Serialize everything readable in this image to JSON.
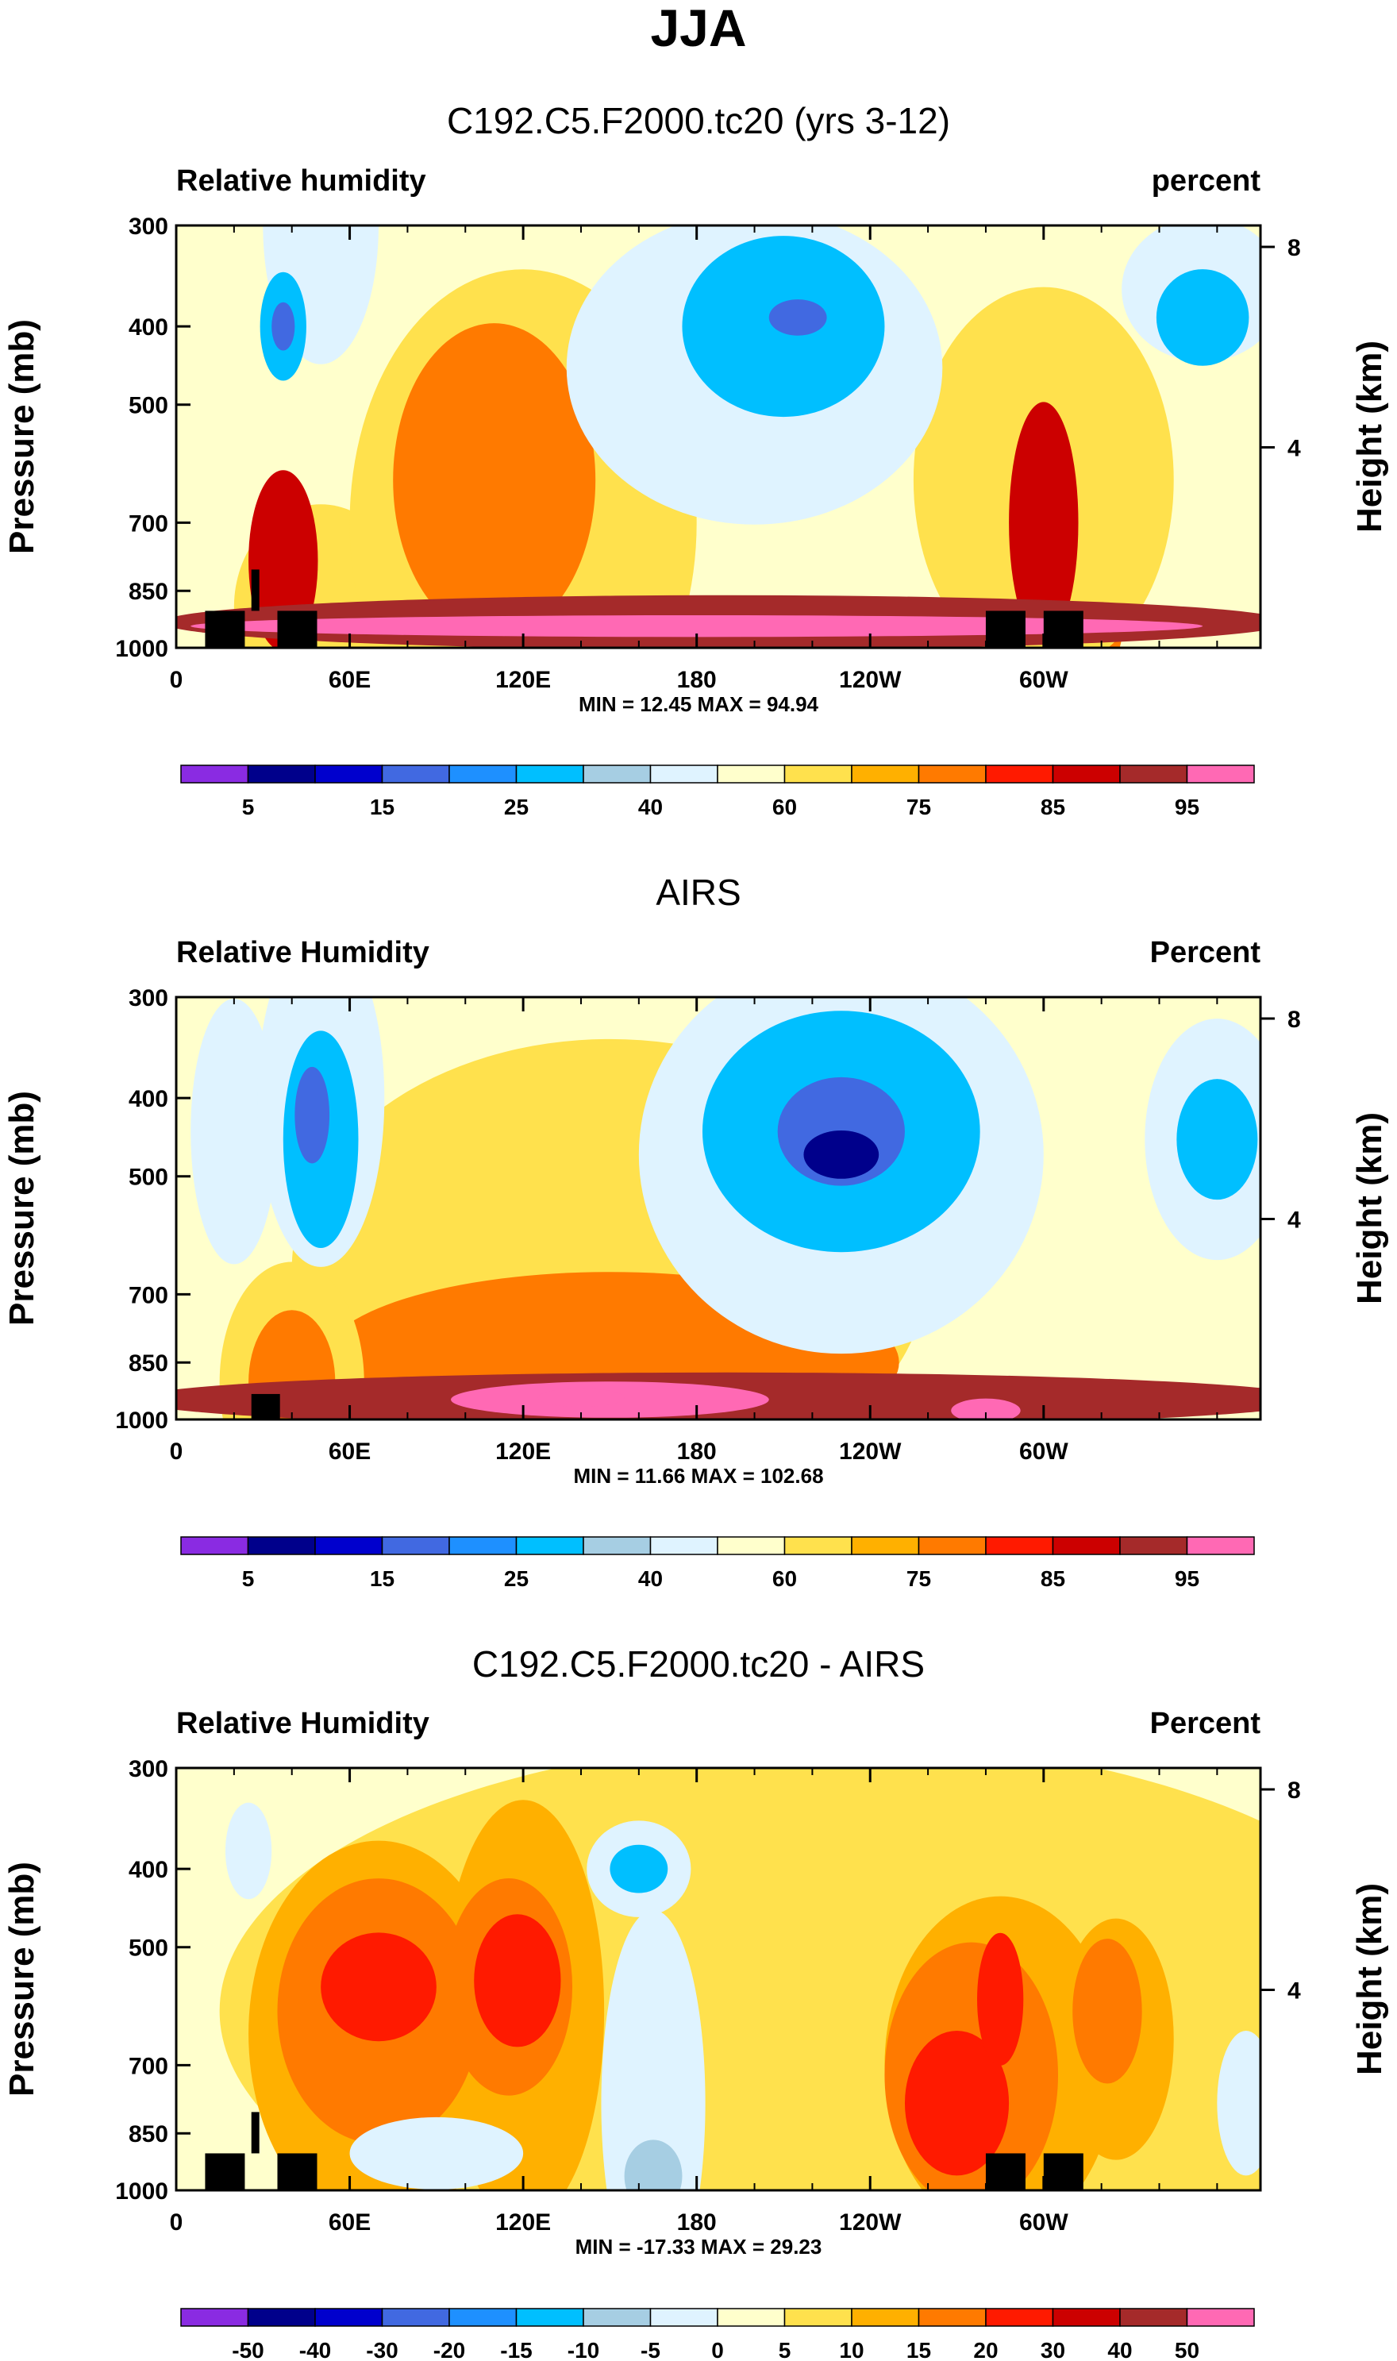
{
  "season": "JJA",
  "chart_data": [
    {
      "type": "heatmap",
      "title": "C192.C5.F2000.tc20 (yrs 3-12)",
      "left_label": "Relative humidity",
      "right_label": "percent",
      "xlabel": "",
      "ylabel": "Pressure (mb)",
      "ylabel_right": "Height (km)",
      "x_ticks": [
        "0",
        "60E",
        "120E",
        "180",
        "120W",
        "60W"
      ],
      "y_ticks": [
        "300",
        "400",
        "500",
        "700",
        "850",
        "1000"
      ],
      "y_ticks_right": [
        "8",
        "4"
      ],
      "xlim": [
        0,
        375
      ],
      "ylim": [
        1000,
        300
      ],
      "stats": "MIN =  12.45  MAX =  94.94",
      "colorbar_labels": [
        "5",
        "15",
        "25",
        "40",
        "60",
        "75",
        "85",
        "95"
      ],
      "layers": [
        {
          "level": 60,
          "cx": 50,
          "cy": 890,
          "rx": 30,
          "ry": 170
        },
        {
          "level": 60,
          "cx": 120,
          "cy": 700,
          "rx": 60,
          "ry": 420
        },
        {
          "level": 75,
          "cx": 110,
          "cy": 620,
          "rx": 35,
          "ry": 260
        },
        {
          "level": 75,
          "cx": 300,
          "cy": 780,
          "rx": 30,
          "ry": 300
        },
        {
          "level": 60,
          "cx": 300,
          "cy": 620,
          "rx": 45,
          "ry": 320
        },
        {
          "level": 85,
          "cx": 37,
          "cy": 780,
          "rx": 12,
          "ry": 150
        },
        {
          "level": 85,
          "cx": 300,
          "cy": 700,
          "rx": 12,
          "ry": 200
        },
        {
          "level": 90,
          "cx": 190,
          "cy": 930,
          "rx": 195,
          "ry": 45
        },
        {
          "level": 95,
          "cx": 180,
          "cy": 940,
          "rx": 175,
          "ry": 18
        },
        {
          "level": 40,
          "cx": 50,
          "cy": 300,
          "rx": 20,
          "ry": 230
        },
        {
          "level": 40,
          "cx": 200,
          "cy": 450,
          "rx": 65,
          "ry": 260
        },
        {
          "level": 25,
          "cx": 210,
          "cy": 400,
          "rx": 35,
          "ry": 150
        },
        {
          "level": 15,
          "cx": 215,
          "cy": 390,
          "rx": 10,
          "ry": 30
        },
        {
          "level": 40,
          "cx": 355,
          "cy": 360,
          "rx": 28,
          "ry": 120
        },
        {
          "level": 25,
          "cx": 355,
          "cy": 390,
          "rx": 16,
          "ry": 80
        },
        {
          "level": 25,
          "cx": 37,
          "cy": 400,
          "rx": 8,
          "ry": 90
        },
        {
          "level": 15,
          "cx": 37,
          "cy": 400,
          "rx": 4,
          "ry": 40
        }
      ],
      "terrain": [
        [
          10,
          1000,
          900
        ],
        [
          35,
          1000,
          900
        ],
        [
          26,
          900,
          800
        ],
        [
          280,
          1000,
          900
        ],
        [
          300,
          1000,
          900
        ]
      ]
    },
    {
      "type": "heatmap",
      "title": "AIRS",
      "left_label": "Relative Humidity",
      "right_label": "Percent",
      "xlabel": "",
      "ylabel": "Pressure (mb)",
      "ylabel_right": "Height (km)",
      "x_ticks": [
        "0",
        "60E",
        "120E",
        "180",
        "120W",
        "60W"
      ],
      "y_ticks": [
        "300",
        "400",
        "500",
        "700",
        "850",
        "1000"
      ],
      "y_ticks_right": [
        "8",
        "4"
      ],
      "xlim": [
        0,
        375
      ],
      "ylim": [
        1000,
        300
      ],
      "stats": "MIN =  11.66  MAX = 102.68",
      "colorbar_labels": [
        "5",
        "15",
        "25",
        "40",
        "60",
        "75",
        "85",
        "95"
      ],
      "layers": [
        {
          "level": 60,
          "cx": 150,
          "cy": 650,
          "rx": 110,
          "ry": 380
        },
        {
          "level": 75,
          "cx": 150,
          "cy": 850,
          "rx": 100,
          "ry": 150
        },
        {
          "level": 60,
          "cx": 40,
          "cy": 900,
          "rx": 25,
          "ry": 200
        },
        {
          "level": 75,
          "cx": 40,
          "cy": 900,
          "rx": 15,
          "ry": 120
        },
        {
          "level": 90,
          "cx": 190,
          "cy": 945,
          "rx": 205,
          "ry": 45
        },
        {
          "level": 95,
          "cx": 150,
          "cy": 945,
          "rx": 55,
          "ry": 30
        },
        {
          "level": 100,
          "cx": 140,
          "cy": 940,
          "rx": 15,
          "ry": 15
        },
        {
          "level": 100,
          "cx": 280,
          "cy": 975,
          "rx": 12,
          "ry": 20
        },
        {
          "level": 40,
          "cx": 20,
          "cy": 440,
          "rx": 15,
          "ry": 220
        },
        {
          "level": 40,
          "cx": 50,
          "cy": 400,
          "rx": 22,
          "ry": 280
        },
        {
          "level": 25,
          "cx": 50,
          "cy": 450,
          "rx": 13,
          "ry": 180
        },
        {
          "level": 15,
          "cx": 47,
          "cy": 420,
          "rx": 6,
          "ry": 80
        },
        {
          "level": 40,
          "cx": 230,
          "cy": 470,
          "rx": 70,
          "ry": 330
        },
        {
          "level": 25,
          "cx": 230,
          "cy": 440,
          "rx": 48,
          "ry": 200
        },
        {
          "level": 15,
          "cx": 230,
          "cy": 440,
          "rx": 22,
          "ry": 90
        },
        {
          "level": 5,
          "cx": 230,
          "cy": 470,
          "rx": 13,
          "ry": 40
        },
        {
          "level": 40,
          "cx": 360,
          "cy": 450,
          "rx": 25,
          "ry": 200
        },
        {
          "level": 25,
          "cx": 360,
          "cy": 450,
          "rx": 14,
          "ry": 100
        }
      ],
      "terrain": [
        [
          26,
          1000,
          930
        ]
      ]
    },
    {
      "type": "heatmap",
      "title": "C192.C5.F2000.tc20 - AIRS",
      "left_label": "Relative Humidity",
      "right_label": "Percent",
      "xlabel": "",
      "ylabel": "Pressure (mb)",
      "ylabel_right": "Height (km)",
      "x_ticks": [
        "0",
        "60E",
        "120E",
        "180",
        "120W",
        "60W"
      ],
      "y_ticks": [
        "300",
        "400",
        "500",
        "700",
        "850",
        "1000"
      ],
      "y_ticks_right": [
        "8",
        "4"
      ],
      "xlim": [
        0,
        375
      ],
      "ylim": [
        1000,
        300
      ],
      "stats": "MIN = -17.33  MAX =  29.23",
      "colorbar_labels": [
        "-50",
        "-40",
        "-30",
        "-20",
        "-15",
        "-10",
        "-5",
        "0",
        "5",
        "10",
        "15",
        "20",
        "30",
        "40",
        "50"
      ],
      "layers": [
        {
          "level": 5,
          "cx": 225,
          "cy": 600,
          "rx": 210,
          "ry": 450
        },
        {
          "level": 10,
          "cx": 70,
          "cy": 640,
          "rx": 45,
          "ry": 320
        },
        {
          "level": 10,
          "cx": 120,
          "cy": 600,
          "rx": 28,
          "ry": 350
        },
        {
          "level": 15,
          "cx": 70,
          "cy": 600,
          "rx": 35,
          "ry": 220
        },
        {
          "level": 15,
          "cx": 115,
          "cy": 560,
          "rx": 22,
          "ry": 180
        },
        {
          "level": 20,
          "cx": 70,
          "cy": 560,
          "rx": 20,
          "ry": 90
        },
        {
          "level": 20,
          "cx": 118,
          "cy": 550,
          "rx": 15,
          "ry": 110
        },
        {
          "level": 10,
          "cx": 285,
          "cy": 700,
          "rx": 40,
          "ry": 280
        },
        {
          "level": 10,
          "cx": 325,
          "cy": 650,
          "rx": 20,
          "ry": 200
        },
        {
          "level": 15,
          "cx": 275,
          "cy": 720,
          "rx": 30,
          "ry": 220
        },
        {
          "level": 15,
          "cx": 322,
          "cy": 600,
          "rx": 12,
          "ry": 120
        },
        {
          "level": 20,
          "cx": 270,
          "cy": 780,
          "rx": 18,
          "ry": 120
        },
        {
          "level": 20,
          "cx": 285,
          "cy": 580,
          "rx": 8,
          "ry": 110
        },
        {
          "level": -5,
          "cx": 165,
          "cy": 780,
          "rx": 18,
          "ry": 320
        },
        {
          "level": -10,
          "cx": 165,
          "cy": 960,
          "rx": 10,
          "ry": 60
        },
        {
          "level": -5,
          "cx": 160,
          "cy": 400,
          "rx": 18,
          "ry": 80
        },
        {
          "level": -15,
          "cx": 160,
          "cy": 400,
          "rx": 10,
          "ry": 40
        },
        {
          "level": -5,
          "cx": 25,
          "cy": 380,
          "rx": 8,
          "ry": 80
        },
        {
          "level": -5,
          "cx": 370,
          "cy": 780,
          "rx": 10,
          "ry": 120
        },
        {
          "level": -5,
          "cx": 90,
          "cy": 900,
          "rx": 30,
          "ry": 60
        }
      ],
      "terrain": [
        [
          10,
          1000,
          900
        ],
        [
          35,
          1000,
          900
        ],
        [
          26,
          900,
          800
        ],
        [
          280,
          1000,
          900
        ],
        [
          300,
          1000,
          900
        ]
      ]
    }
  ],
  "colorbar_palettes": {
    "rh": [
      "#8a2be2",
      "#00008b",
      "#0000cd",
      "#4169e1",
      "#1e90ff",
      "#00bfff",
      "#a6cee3",
      "#dff3ff",
      "#ffffcc",
      "#ffe14d",
      "#ffb000",
      "#ff7a00",
      "#ff1a00",
      "#cc0000",
      "#a52a2a",
      "#ff69b4"
    ],
    "diff": [
      "#8a2be2",
      "#00008b",
      "#0000cd",
      "#4169e1",
      "#1e90ff",
      "#00bfff",
      "#a6cee3",
      "#dff3ff",
      "#ffffcc",
      "#ffe14d",
      "#ffb000",
      "#ff7a00",
      "#ff1a00",
      "#cc0000",
      "#a52a2a",
      "#ff69b4"
    ]
  },
  "colorbar_levels": {
    "rh": [
      5,
      10,
      15,
      20,
      25,
      30,
      40,
      50,
      60,
      70,
      75,
      80,
      85,
      90,
      95
    ],
    "diff": [
      -50,
      -40,
      -30,
      -20,
      -15,
      -10,
      -5,
      0,
      5,
      10,
      15,
      20,
      30,
      40,
      50
    ]
  }
}
